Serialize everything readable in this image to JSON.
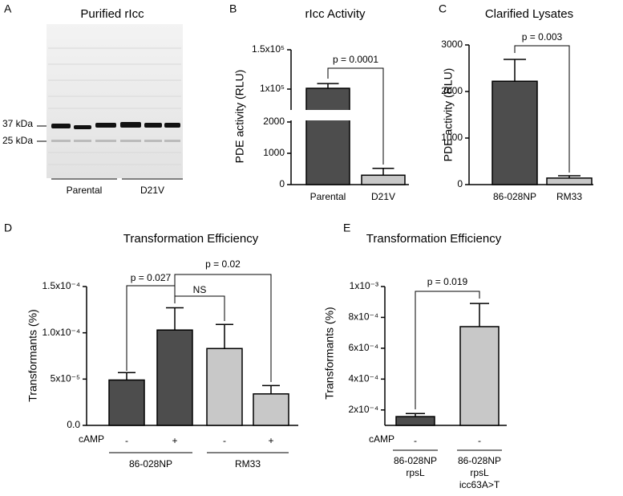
{
  "gel": {
    "panel_label": "A",
    "title": "Purified rIcc",
    "markers": [
      "37 kDa",
      "25 kDa"
    ],
    "groups": [
      "Parental",
      "D21V"
    ]
  },
  "chart_data": [
    {
      "type": "bar",
      "panel_label": "B",
      "title": "rIcc Activity",
      "ylabel": "PDE activity (RLU)",
      "categories": [
        "Parental",
        "D21V"
      ],
      "values": [
        101000,
        300
      ],
      "errors": [
        6000,
        220
      ],
      "colors": [
        "#4d4d4d",
        "#c8c8c8"
      ],
      "ylim": [
        0,
        150000
      ],
      "axis_break": [
        2000,
        100000
      ],
      "yticks": [
        0,
        1000,
        2000,
        {
          "value": 100000,
          "label": "1x10⁵"
        },
        {
          "value": 150000,
          "label": "1.5x10⁵"
        }
      ],
      "annotations": [
        "p = 0.0001"
      ]
    },
    {
      "type": "bar",
      "panel_label": "C",
      "title": "Clarified Lysates",
      "ylabel": "PDE activity (RLU)",
      "categories": [
        "86-028NP",
        "RM33"
      ],
      "values": [
        2220,
        140
      ],
      "errors": [
        470,
        50
      ],
      "colors": [
        "#4d4d4d",
        "#c8c8c8"
      ],
      "ylim": [
        0,
        3000
      ],
      "yticks": [
        0,
        1000,
        2000,
        3000
      ],
      "annotations": [
        "p = 0.003"
      ]
    },
    {
      "type": "bar",
      "panel_label": "D",
      "title": "Transformation Efficiency",
      "ylabel": "Transformants (%)",
      "treatment": {
        "label": "cAMP",
        "values": [
          "-",
          "+",
          "-",
          "+"
        ]
      },
      "groups": [
        "86-028NP",
        "RM33"
      ],
      "values": [
        4.9e-05,
        0.000103,
        8.3e-05,
        3.4e-05
      ],
      "errors": [
        8e-06,
        2.4e-05,
        2.6e-05,
        9e-06
      ],
      "colors": [
        "#4d4d4d",
        "#4d4d4d",
        "#c8c8c8",
        "#c8c8c8"
      ],
      "ylim": [
        0,
        0.00015
      ],
      "yticks": [
        {
          "value": 0,
          "label": "0.0"
        },
        {
          "value": 5e-05,
          "label": "5x10⁻⁵"
        },
        {
          "value": 0.0001,
          "label": "1.0x10⁻⁴"
        },
        {
          "value": 0.00015,
          "label": "1.5x10⁻⁴"
        }
      ],
      "annotations": [
        "p = 0.027",
        "NS",
        "p = 0.02"
      ]
    },
    {
      "type": "bar",
      "panel_label": "E",
      "title": "Transformation Efficiency",
      "ylabel": "Transformants (%)",
      "treatment": {
        "label": "cAMP",
        "values": [
          "-",
          "-"
        ]
      },
      "categories": [
        [
          "86-028NP",
          "rpsL"
        ],
        [
          "86-028NP",
          "rpsL",
          "icc63A>T"
        ]
      ],
      "values": [
        0.000157,
        0.00074
      ],
      "errors": [
        2e-05,
        0.00015
      ],
      "colors": [
        "#4d4d4d",
        "#c8c8c8"
      ],
      "ylim": [
        0.0001,
        0.001
      ],
      "yticks": [
        {
          "value": 0.0002,
          "label": "2x10⁻⁴"
        },
        {
          "value": 0.0004,
          "label": "4x10⁻⁴"
        },
        {
          "value": 0.0006,
          "label": "6x10⁻⁴"
        },
        {
          "value": 0.0008,
          "label": "8x10⁻⁴"
        },
        {
          "value": 0.001,
          "label": "1x10⁻³"
        }
      ],
      "annotations": [
        "p = 0.019"
      ]
    }
  ]
}
